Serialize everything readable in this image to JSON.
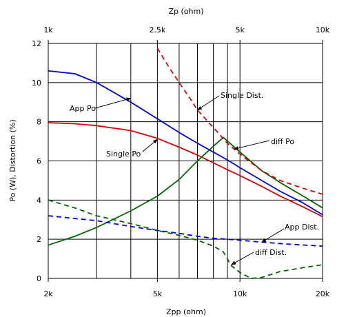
{
  "chart_data": {
    "type": "line",
    "title": "",
    "x_top_label": "Zp (ohm)",
    "x_bottom_label": "Zpp (ohm)",
    "y_label": "Po (W), Distortion (%)",
    "x_scale": "log",
    "x_bottom_range": [
      2000,
      20000
    ],
    "x_top_range": [
      1000,
      10000
    ],
    "ylim": [
      0,
      12
    ],
    "x_bottom_ticks": [
      {
        "label": "2k",
        "value": 2000
      },
      {
        "label": "5k",
        "value": 5000
      },
      {
        "label": "10k",
        "value": 10000
      },
      {
        "label": "20k",
        "value": 20000
      }
    ],
    "x_top_ticks": [
      {
        "label": "1k",
        "value": 1000
      },
      {
        "label": "2.5k",
        "value": 2500
      },
      {
        "label": "5k",
        "value": 5000
      },
      {
        "label": "10k",
        "value": 10000
      }
    ],
    "y_ticks": [
      0,
      2,
      4,
      6,
      8,
      10,
      12
    ],
    "vertical_grid_x": [
      2000,
      3000,
      4000,
      5000,
      6000,
      7000,
      8000,
      9000,
      10000,
      20000
    ],
    "grid": true,
    "series": [
      {
        "name": "App Po",
        "color": "#0000dd",
        "dash": "solid",
        "points": [
          [
            2000,
            10.6
          ],
          [
            2500,
            10.45
          ],
          [
            3000,
            10.0
          ],
          [
            4000,
            9.0
          ],
          [
            5000,
            8.15
          ],
          [
            6000,
            7.45
          ],
          [
            7000,
            6.9
          ],
          [
            8000,
            6.45
          ],
          [
            9000,
            6.05
          ],
          [
            10000,
            5.65
          ],
          [
            12000,
            5.0
          ],
          [
            14000,
            4.45
          ],
          [
            17000,
            3.85
          ],
          [
            20000,
            3.25
          ]
        ]
      },
      {
        "name": "Single Po",
        "color": "#dd0000",
        "dash": "solid",
        "points": [
          [
            2000,
            7.95
          ],
          [
            2500,
            7.9
          ],
          [
            3000,
            7.8
          ],
          [
            4000,
            7.55
          ],
          [
            5000,
            7.15
          ],
          [
            6000,
            6.7
          ],
          [
            7000,
            6.3
          ],
          [
            8000,
            5.9
          ],
          [
            9000,
            5.55
          ],
          [
            10000,
            5.25
          ],
          [
            12000,
            4.7
          ],
          [
            14000,
            4.2
          ],
          [
            17000,
            3.65
          ],
          [
            20000,
            3.15
          ]
        ]
      },
      {
        "name": "diff Po",
        "color": "#006600",
        "dash": "solid",
        "points": [
          [
            2000,
            1.7
          ],
          [
            2500,
            2.15
          ],
          [
            3000,
            2.6
          ],
          [
            4000,
            3.45
          ],
          [
            5000,
            4.2
          ],
          [
            6000,
            5.05
          ],
          [
            7000,
            6.0
          ],
          [
            8000,
            6.75
          ],
          [
            8700,
            7.2
          ],
          [
            10000,
            6.45
          ],
          [
            12000,
            5.5
          ],
          [
            14000,
            4.9
          ],
          [
            17000,
            4.2
          ],
          [
            20000,
            3.6
          ]
        ]
      },
      {
        "name": "Single Dist.",
        "color": "#dd0000",
        "dash": "dashed",
        "points": [
          [
            5000,
            11.75
          ],
          [
            5500,
            10.8
          ],
          [
            6000,
            10.0
          ],
          [
            6500,
            9.3
          ],
          [
            7000,
            8.6
          ],
          [
            8000,
            7.7
          ],
          [
            9000,
            6.9
          ],
          [
            10000,
            6.35
          ],
          [
            12000,
            5.5
          ],
          [
            14000,
            5.0
          ],
          [
            17000,
            4.6
          ],
          [
            20000,
            4.3
          ]
        ]
      },
      {
        "name": "App Dist.",
        "color": "#0000dd",
        "dash": "dashed",
        "points": [
          [
            2000,
            3.2
          ],
          [
            3000,
            2.95
          ],
          [
            4000,
            2.65
          ],
          [
            5000,
            2.45
          ],
          [
            6000,
            2.3
          ],
          [
            7000,
            2.15
          ],
          [
            8000,
            2.05
          ],
          [
            10000,
            1.95
          ],
          [
            12000,
            1.85
          ],
          [
            15000,
            1.75
          ],
          [
            20000,
            1.65
          ]
        ]
      },
      {
        "name": "diff Dist.",
        "color": "#006600",
        "dash": "dashed",
        "points": [
          [
            2000,
            4.0
          ],
          [
            2500,
            3.6
          ],
          [
            3000,
            3.2
          ],
          [
            4000,
            2.8
          ],
          [
            5000,
            2.45
          ],
          [
            6000,
            2.2
          ],
          [
            7000,
            1.95
          ],
          [
            8000,
            1.65
          ],
          [
            8700,
            1.35
          ],
          [
            9300,
            0.65
          ],
          [
            10000,
            0.3
          ],
          [
            11000,
            0.0
          ],
          [
            12000,
            0.05
          ],
          [
            14000,
            0.35
          ],
          [
            17000,
            0.55
          ],
          [
            20000,
            0.7
          ]
        ]
      }
    ],
    "annotations": [
      {
        "text": "App Po",
        "series": "App Po",
        "pointer": [
          4000,
          9.2
        ]
      },
      {
        "text": "Single Po",
        "series": "Single Po",
        "pointer": [
          5000,
          7.1
        ]
      },
      {
        "text": "Single Dist.",
        "series": "Single Dist.",
        "pointer": [
          7000,
          8.6
        ]
      },
      {
        "text": "diff Po",
        "series": "diff Po",
        "pointer": [
          9500,
          6.6
        ]
      },
      {
        "text": "App Dist.",
        "series": "App Dist.",
        "pointer": [
          12000,
          1.85
        ]
      },
      {
        "text": "diff Dist.",
        "series": "diff Dist.",
        "pointer": [
          9300,
          0.7
        ]
      }
    ]
  }
}
